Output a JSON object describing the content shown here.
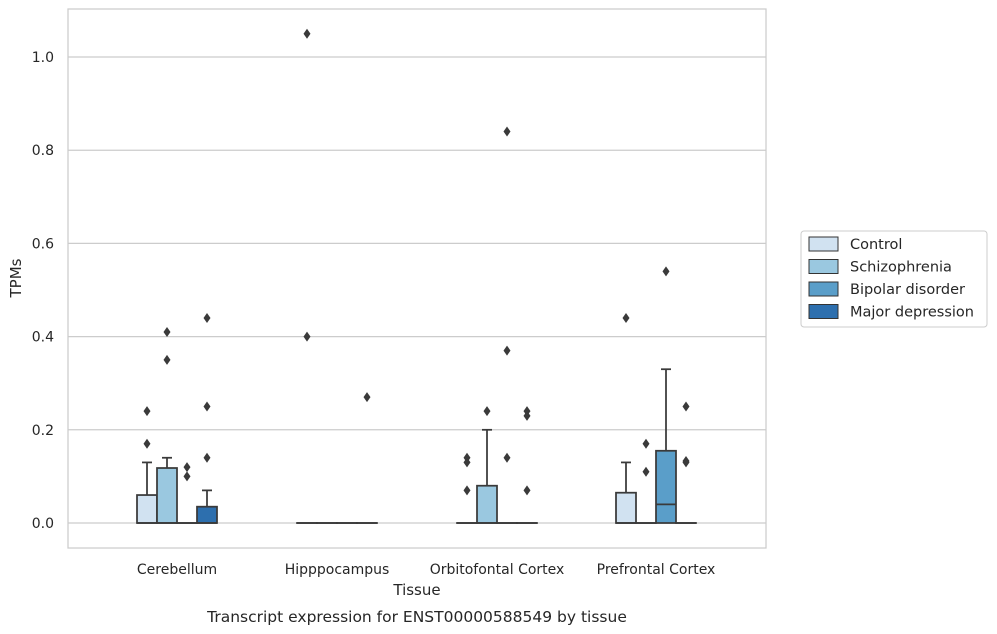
{
  "chart_data": {
    "type": "box",
    "title": "Transcript expression for ENST00000588549 by tissue",
    "xlabel": "Tissue",
    "ylabel": "TPMs",
    "ylim": [
      -0.05,
      1.1
    ],
    "yticks": [
      0.0,
      0.2,
      0.4,
      0.6,
      0.8,
      1.0
    ],
    "ytick_labels": [
      "0.0",
      "0.2",
      "0.4",
      "0.6",
      "0.8",
      "1.0"
    ],
    "grid": "horizontal",
    "legend_position": "right",
    "categories": [
      "Cerebellum",
      "Hipppocampus",
      "Orbitofontal Cortex",
      "Prefrontal Cortex"
    ],
    "series": [
      {
        "name": "Control",
        "color": "#d1e2f1",
        "boxes": [
          {
            "q1": 0.0,
            "median": 0.0,
            "q3": 0.06,
            "whisker_low": 0.0,
            "whisker_high": 0.13,
            "outliers": [
              0.17,
              0.24
            ]
          },
          {
            "q1": 0.0,
            "median": 0.0,
            "q3": 0.0,
            "whisker_low": 0.0,
            "whisker_high": 0.0,
            "outliers": [
              0.4,
              1.05
            ]
          },
          {
            "q1": 0.0,
            "median": 0.0,
            "q3": 0.0,
            "whisker_low": 0.0,
            "whisker_high": 0.0,
            "outliers": [
              0.07,
              0.13,
              0.14
            ]
          },
          {
            "q1": 0.0,
            "median": 0.0,
            "q3": 0.065,
            "whisker_low": 0.0,
            "whisker_high": 0.13,
            "outliers": [
              0.44
            ]
          }
        ]
      },
      {
        "name": "Schizophrenia",
        "color": "#9ac8e0",
        "boxes": [
          {
            "q1": 0.0,
            "median": 0.0,
            "q3": 0.118,
            "whisker_low": 0.0,
            "whisker_high": 0.14,
            "outliers": [
              0.35,
              0.41
            ]
          },
          {
            "q1": 0.0,
            "median": 0.0,
            "q3": 0.0,
            "whisker_low": 0.0,
            "whisker_high": 0.0,
            "outliers": []
          },
          {
            "q1": 0.0,
            "median": 0.0,
            "q3": 0.08,
            "whisker_low": 0.0,
            "whisker_high": 0.2,
            "outliers": [
              0.24
            ]
          },
          {
            "q1": 0.0,
            "median": 0.0,
            "q3": 0.0,
            "whisker_low": 0.0,
            "whisker_high": 0.0,
            "outliers": [
              0.11,
              0.17
            ]
          }
        ]
      },
      {
        "name": "Bipolar disorder",
        "color": "#5a9ec9",
        "boxes": [
          {
            "q1": 0.0,
            "median": 0.0,
            "q3": 0.0,
            "whisker_low": 0.0,
            "whisker_high": 0.0,
            "outliers": [
              0.1,
              0.12
            ]
          },
          {
            "q1": 0.0,
            "median": 0.0,
            "q3": 0.0,
            "whisker_low": 0.0,
            "whisker_high": 0.0,
            "outliers": []
          },
          {
            "q1": 0.0,
            "median": 0.0,
            "q3": 0.0,
            "whisker_low": 0.0,
            "whisker_high": 0.0,
            "outliers": [
              0.14,
              0.37,
              0.84
            ]
          },
          {
            "q1": 0.0,
            "median": 0.04,
            "q3": 0.155,
            "whisker_low": 0.0,
            "whisker_high": 0.33,
            "outliers": [
              0.54
            ]
          }
        ]
      },
      {
        "name": "Major depression",
        "color": "#2d6fae",
        "boxes": [
          {
            "q1": 0.0,
            "median": 0.0,
            "q3": 0.035,
            "whisker_low": 0.0,
            "whisker_high": 0.07,
            "outliers": [
              0.14,
              0.25,
              0.44
            ]
          },
          {
            "q1": 0.0,
            "median": 0.0,
            "q3": 0.0,
            "whisker_low": 0.0,
            "whisker_high": 0.0,
            "outliers": [
              0.27
            ]
          },
          {
            "q1": 0.0,
            "median": 0.0,
            "q3": 0.0,
            "whisker_low": 0.0,
            "whisker_high": 0.0,
            "outliers": [
              0.07,
              0.23,
              0.24
            ]
          },
          {
            "q1": 0.0,
            "median": 0.0,
            "q3": 0.0,
            "whisker_low": 0.0,
            "whisker_high": 0.0,
            "outliers": [
              0.13,
              0.133,
              0.25
            ]
          }
        ]
      }
    ]
  }
}
